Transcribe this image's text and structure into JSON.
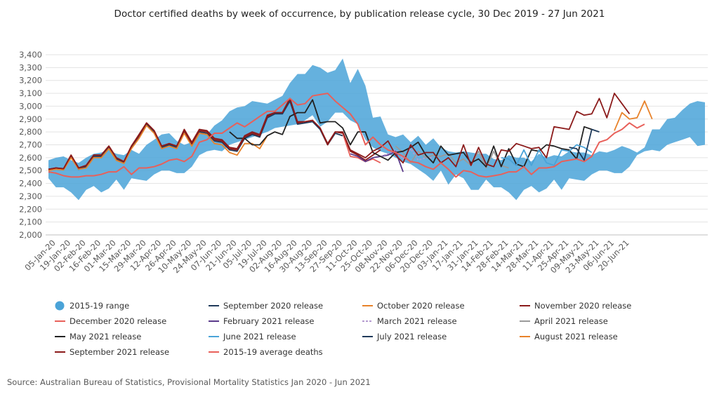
{
  "chart_data": {
    "type": "line",
    "title": "Doctor certified deaths by week of occurrence, by publication release cycle, 30 Dec 2019 - 27 Jun 2021",
    "source": "Source: Australian Bureau of Statistics, Provisional Mortality Statistics Jan 2020 - Jun 2021",
    "ylim": [
      2000,
      3400
    ],
    "y_ticks": [
      "2,000",
      "2,100",
      "2,200",
      "2,300",
      "2,400",
      "2,500",
      "2,600",
      "2,700",
      "2,800",
      "2,900",
      "3,000",
      "3,100",
      "3,200",
      "3,300",
      "3,400"
    ],
    "grid": "horizontal",
    "legend_position": "bottom",
    "x_tick_labels": [
      "05-Jan-20",
      "19-Jan-20",
      "02-Feb-20",
      "16-Feb-20",
      "01-Mar-20",
      "15-Mar-20",
      "29-Mar-20",
      "12-Apr-20",
      "26-Apr-20",
      "10-May-20",
      "24-May-20",
      "07-Jun-20",
      "21-Jun-20",
      "05-Jul-20",
      "19-Jul-20",
      "02-Aug-20",
      "16-Aug-20",
      "30-Aug-20",
      "13-Sep-20",
      "27-Sep-20",
      "11-Oct-20",
      "25-Oct-20",
      "08-Nov-20",
      "22-Nov-20",
      "06-Dec-20",
      "20-Dec-20",
      "03-Jan-21",
      "17-Jan-21",
      "31-Jan-21",
      "14-Feb-21",
      "28-Feb-21",
      "14-Mar-21",
      "28-Mar-21",
      "11-Apr-21",
      "25-Apr-21",
      "09-May-21",
      "23-May-21",
      "06-Jun-21",
      "20-Jun-21"
    ],
    "range": {
      "name": "2015-19 range",
      "color": "#4aa3d8",
      "upper": [
        2580,
        2600,
        2610,
        2580,
        2560,
        2600,
        2630,
        2640,
        2660,
        2630,
        2620,
        2660,
        2630,
        2700,
        2740,
        2780,
        2790,
        2730,
        2700,
        2720,
        2790,
        2780,
        2850,
        2890,
        2960,
        2990,
        3000,
        3040,
        3030,
        3020,
        3050,
        3080,
        3180,
        3250,
        3250,
        3320,
        3300,
        3260,
        3280,
        3370,
        3180,
        3290,
        3160,
        2910,
        2920,
        2780,
        2760,
        2780,
        2720,
        2770,
        2700,
        2750,
        2680,
        2650,
        2640,
        2650,
        2640,
        2630,
        2630,
        2590,
        2580,
        2620,
        2600,
        2600,
        2570,
        2630,
        2600,
        2620,
        2610,
        2650,
        2640,
        2640,
        2620,
        2650,
        2640,
        2660,
        2690,
        2670,
        2640,
        2680,
        2820,
        2820,
        2900,
        2910,
        2970,
        3020,
        3040,
        3030
      ],
      "lower": [
        2440,
        2370,
        2370,
        2330,
        2270,
        2350,
        2380,
        2330,
        2360,
        2430,
        2350,
        2440,
        2430,
        2420,
        2470,
        2500,
        2500,
        2480,
        2480,
        2530,
        2620,
        2650,
        2660,
        2650,
        2700,
        2720,
        2740,
        2760,
        2780,
        2800,
        2830,
        2840,
        2850,
        2860,
        2890,
        2930,
        2840,
        2880,
        2950,
        2950,
        2890,
        2860,
        2740,
        2680,
        2650,
        2630,
        2600,
        2570,
        2550,
        2510,
        2470,
        2420,
        2500,
        2390,
        2470,
        2440,
        2350,
        2350,
        2430,
        2370,
        2370,
        2330,
        2270,
        2350,
        2380,
        2330,
        2360,
        2430,
        2350,
        2440,
        2430,
        2420,
        2470,
        2500,
        2500,
        2480,
        2480,
        2530,
        2620,
        2650,
        2660,
        2650,
        2700,
        2720,
        2740,
        2760,
        2690,
        2700
      ]
    },
    "series": [
      {
        "name": "September 2020 release",
        "color": "#1f3a5a",
        "start": 0,
        "values": [
          2505,
          2520,
          2510,
          2610,
          2510,
          2530,
          2610,
          2610,
          2680,
          2590,
          2560,
          2680,
          2760,
          2860,
          2800,
          2680,
          2700,
          2680,
          2800,
          2700,
          2800,
          2790,
          2730,
          2720,
          2660,
          2650,
          2750,
          2780,
          2760,
          2910,
          2940,
          2940,
          3040,
          2860,
          2870,
          2880,
          2820,
          2700,
          2790,
          2770
        ]
      },
      {
        "name": "October 2020 release",
        "color": "#e8822a",
        "start": 0,
        "values": [
          2500,
          2510,
          2505,
          2600,
          2510,
          2520,
          2600,
          2600,
          2670,
          2580,
          2555,
          2670,
          2750,
          2850,
          2790,
          2670,
          2690,
          2670,
          2790,
          2690,
          2790,
          2780,
          2710,
          2700,
          2640,
          2620,
          2710,
          2710,
          2670,
          2770
        ]
      },
      {
        "name": "November 2020 release",
        "color": "#8b1a1a",
        "start": 0,
        "values": [
          2510,
          2520,
          2515,
          2620,
          2520,
          2540,
          2620,
          2620,
          2690,
          2600,
          2570,
          2690,
          2770,
          2870,
          2810,
          2690,
          2710,
          2690,
          2810,
          2710,
          2810,
          2800,
          2740,
          2730,
          2670,
          2660,
          2760,
          2790,
          2770,
          2920,
          2950,
          2950,
          3060,
          2870,
          2880,
          2890,
          2830,
          2710,
          2800,
          2790,
          2650,
          2620,
          2580,
          2620,
          2660
        ]
      },
      {
        "name": "December 2020 release",
        "color": "#e8605a",
        "start": 39,
        "values": [
          2790,
          2610,
          2600,
          2570,
          2590,
          2560
        ]
      },
      {
        "name": "February 2021 release",
        "color": "#5a3a8a",
        "start": 40,
        "values": [
          2630,
          2610,
          2570,
          2600,
          2610,
          2620,
          2650,
          2490
        ]
      },
      {
        "name": "March 2021 release",
        "color": "#b49ad0",
        "start": 44,
        "values": [
          2610,
          2630,
          2660,
          2590,
          2670,
          2580,
          2600,
          2600
        ]
      },
      {
        "name": "April 2021 release",
        "color": "#9a9a9a",
        "start": 46,
        "values": [
          2690,
          2640,
          2560,
          2650,
          2600,
          2620,
          2610,
          2630,
          2560,
          2590,
          2540,
          2650,
          2520,
          2650,
          2540,
          2520
        ]
      },
      {
        "name": "May 2021 release",
        "color": "#222222",
        "start": 24,
        "values": [
          2800,
          2750,
          2750,
          2700,
          2700,
          2770,
          2800,
          2780,
          2920,
          2950,
          2950,
          3050,
          2870,
          2880,
          2880,
          2830,
          2700,
          2800,
          2800,
          2640,
          2610,
          2580,
          2640,
          2650,
          2680,
          2720,
          2620,
          2560,
          2690,
          2620,
          2630,
          2640,
          2560,
          2590,
          2530,
          2690,
          2530,
          2670,
          2550,
          2530,
          2660,
          2650,
          2700,
          2690,
          2670,
          2660,
          2590,
          2840,
          2820
        ]
      },
      {
        "name": "June 2021 release",
        "color": "#4aa3d8",
        "start": 60,
        "values": [
          2600,
          2590,
          2540,
          2660,
          2540,
          2660,
          2560,
          2540,
          2660,
          2650,
          2700,
          2680,
          2640
        ]
      },
      {
        "name": "July 2021 release",
        "color": "#1f3a5a",
        "start": 69,
        "values": [
          2680,
          2670,
          2580,
          2820,
          2800
        ]
      },
      {
        "name": "August 2021 release",
        "color": "#e8822a",
        "start": 75,
        "values": [
          2810,
          2950,
          2900,
          2910,
          3040,
          2900
        ]
      },
      {
        "name": "September 2021 release",
        "color": "#8b1a1a",
        "start": 0,
        "values": [
          2510,
          2520,
          2515,
          2620,
          2520,
          2540,
          2620,
          2620,
          2690,
          2600,
          2570,
          2690,
          2780,
          2870,
          2810,
          2690,
          2710,
          2690,
          2820,
          2720,
          2820,
          2810,
          2750,
          2740,
          2680,
          2670,
          2770,
          2800,
          2780,
          2930,
          2950,
          2950,
          3060,
          2880,
          2880,
          2890,
          2830,
          2700,
          2800,
          2800,
          2660,
          2630,
          2600,
          2650,
          2680,
          2730,
          2620,
          2560,
          2700,
          2620,
          2640,
          2640,
          2560,
          2600,
          2530,
          2700,
          2540,
          2680,
          2550,
          2530,
          2660,
          2650,
          2710,
          2690,
          2670,
          2680,
          2600,
          2840,
          2830,
          2820,
          2960,
          2930,
          2940,
          3060,
          2910,
          3100,
          3020,
          2940
        ]
      },
      {
        "name": "2015-19 average deaths",
        "color": "#e8605a",
        "start": 0,
        "values": [
          2490,
          2480,
          2460,
          2450,
          2450,
          2460,
          2460,
          2470,
          2490,
          2490,
          2530,
          2470,
          2520,
          2520,
          2530,
          2550,
          2580,
          2590,
          2570,
          2610,
          2720,
          2740,
          2790,
          2790,
          2830,
          2870,
          2840,
          2880,
          2920,
          2960,
          2960,
          3010,
          3060,
          3010,
          3020,
          3080,
          3090,
          3100,
          3040,
          2990,
          2940,
          2860,
          2700,
          2760,
          2700,
          2660,
          2640,
          2610,
          2570,
          2560,
          2530,
          2510,
          2560,
          2510,
          2450,
          2500,
          2490,
          2460,
          2450,
          2460,
          2470,
          2490,
          2490,
          2530,
          2470,
          2520,
          2520,
          2530,
          2570,
          2580,
          2590,
          2570,
          2610,
          2720,
          2740,
          2790,
          2820,
          2870,
          2830,
          2860
        ]
      }
    ],
    "legend": [
      {
        "label": "2015-19 range",
        "color": "#4aa3d8",
        "kind": "dot"
      },
      {
        "label": "September 2020 release",
        "color": "#1f3a5a",
        "kind": "line"
      },
      {
        "label": "October 2020 release",
        "color": "#e8822a",
        "kind": "line"
      },
      {
        "label": "November 2020 release",
        "color": "#8b1a1a",
        "kind": "line"
      },
      {
        "label": "December 2020 release",
        "color": "#e8605a",
        "kind": "line"
      },
      {
        "label": "February 2021 release",
        "color": "#5a3a8a",
        "kind": "line"
      },
      {
        "label": "March 2021 release",
        "color": "#b49ad0",
        "kind": "dashed"
      },
      {
        "label": "April 2021 release",
        "color": "#9a9a9a",
        "kind": "line"
      },
      {
        "label": "May 2021 release",
        "color": "#222222",
        "kind": "line"
      },
      {
        "label": "June 2021 release",
        "color": "#4aa3d8",
        "kind": "line"
      },
      {
        "label": "July 2021 release",
        "color": "#1f3a5a",
        "kind": "line"
      },
      {
        "label": "August 2021 release",
        "color": "#e8822a",
        "kind": "line"
      },
      {
        "label": "September 2021 release",
        "color": "#8b1a1a",
        "kind": "line"
      },
      {
        "label": "2015-19 average deaths",
        "color": "#e8605a",
        "kind": "line"
      }
    ]
  }
}
